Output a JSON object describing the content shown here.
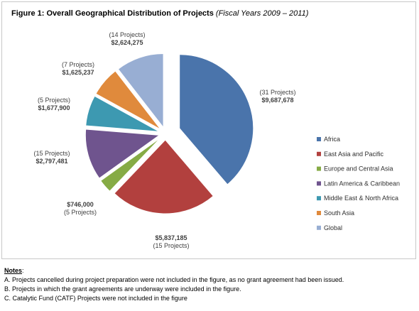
{
  "figure": {
    "title": "Figure 1:  Overall Geographical Distribution of Projects",
    "subtitle": "(Fiscal Years 2009 – 2011)"
  },
  "chart_data": {
    "type": "pie",
    "slices": [
      {
        "name": "Africa",
        "value": 9687678,
        "value_label": "$9,687,678",
        "projects_label": "(31 Projects)",
        "color": "#4a74ab"
      },
      {
        "name": "East Asia and Pacific",
        "value": 5837185,
        "value_label": "$5,837,185",
        "projects_label": "(15 Projects)",
        "color": "#b2403e"
      },
      {
        "name": "Europe and Central Asia",
        "value": 746000,
        "value_label": "$746,000",
        "projects_label": "(5 Projects)",
        "color": "#86ab45"
      },
      {
        "name": "Latin America & Caribbean",
        "value": 2797481,
        "value_label": "$2,797,481",
        "projects_label": "(15 Projects)",
        "color": "#6f548e"
      },
      {
        "name": "Middle East & North Africa",
        "value": 1677900,
        "value_label": "$1,677,900",
        "projects_label": "(5 Projects)",
        "color": "#3d99b1"
      },
      {
        "name": "South Asia",
        "value": 1625237,
        "value_label": "$1,625,237",
        "projects_label": "(7 Projects)",
        "color": "#e08a3c"
      },
      {
        "name": "Global",
        "value": 2624275,
        "value_label": "$2,624,275",
        "projects_label": "(14 Projects)",
        "color": "#98aed3"
      }
    ],
    "legend_position": "right"
  },
  "notes": {
    "title": "Notes",
    "title_suffix": ":",
    "items": [
      "A. Projects cancelled during project preparation were not included in the figure, as no grant agreement had been issued.",
      "B. Projects in which the grant agreements are underway were included in the figure.",
      "C. Catalytic Fund (CATF) Projects were not included in the figure"
    ]
  }
}
